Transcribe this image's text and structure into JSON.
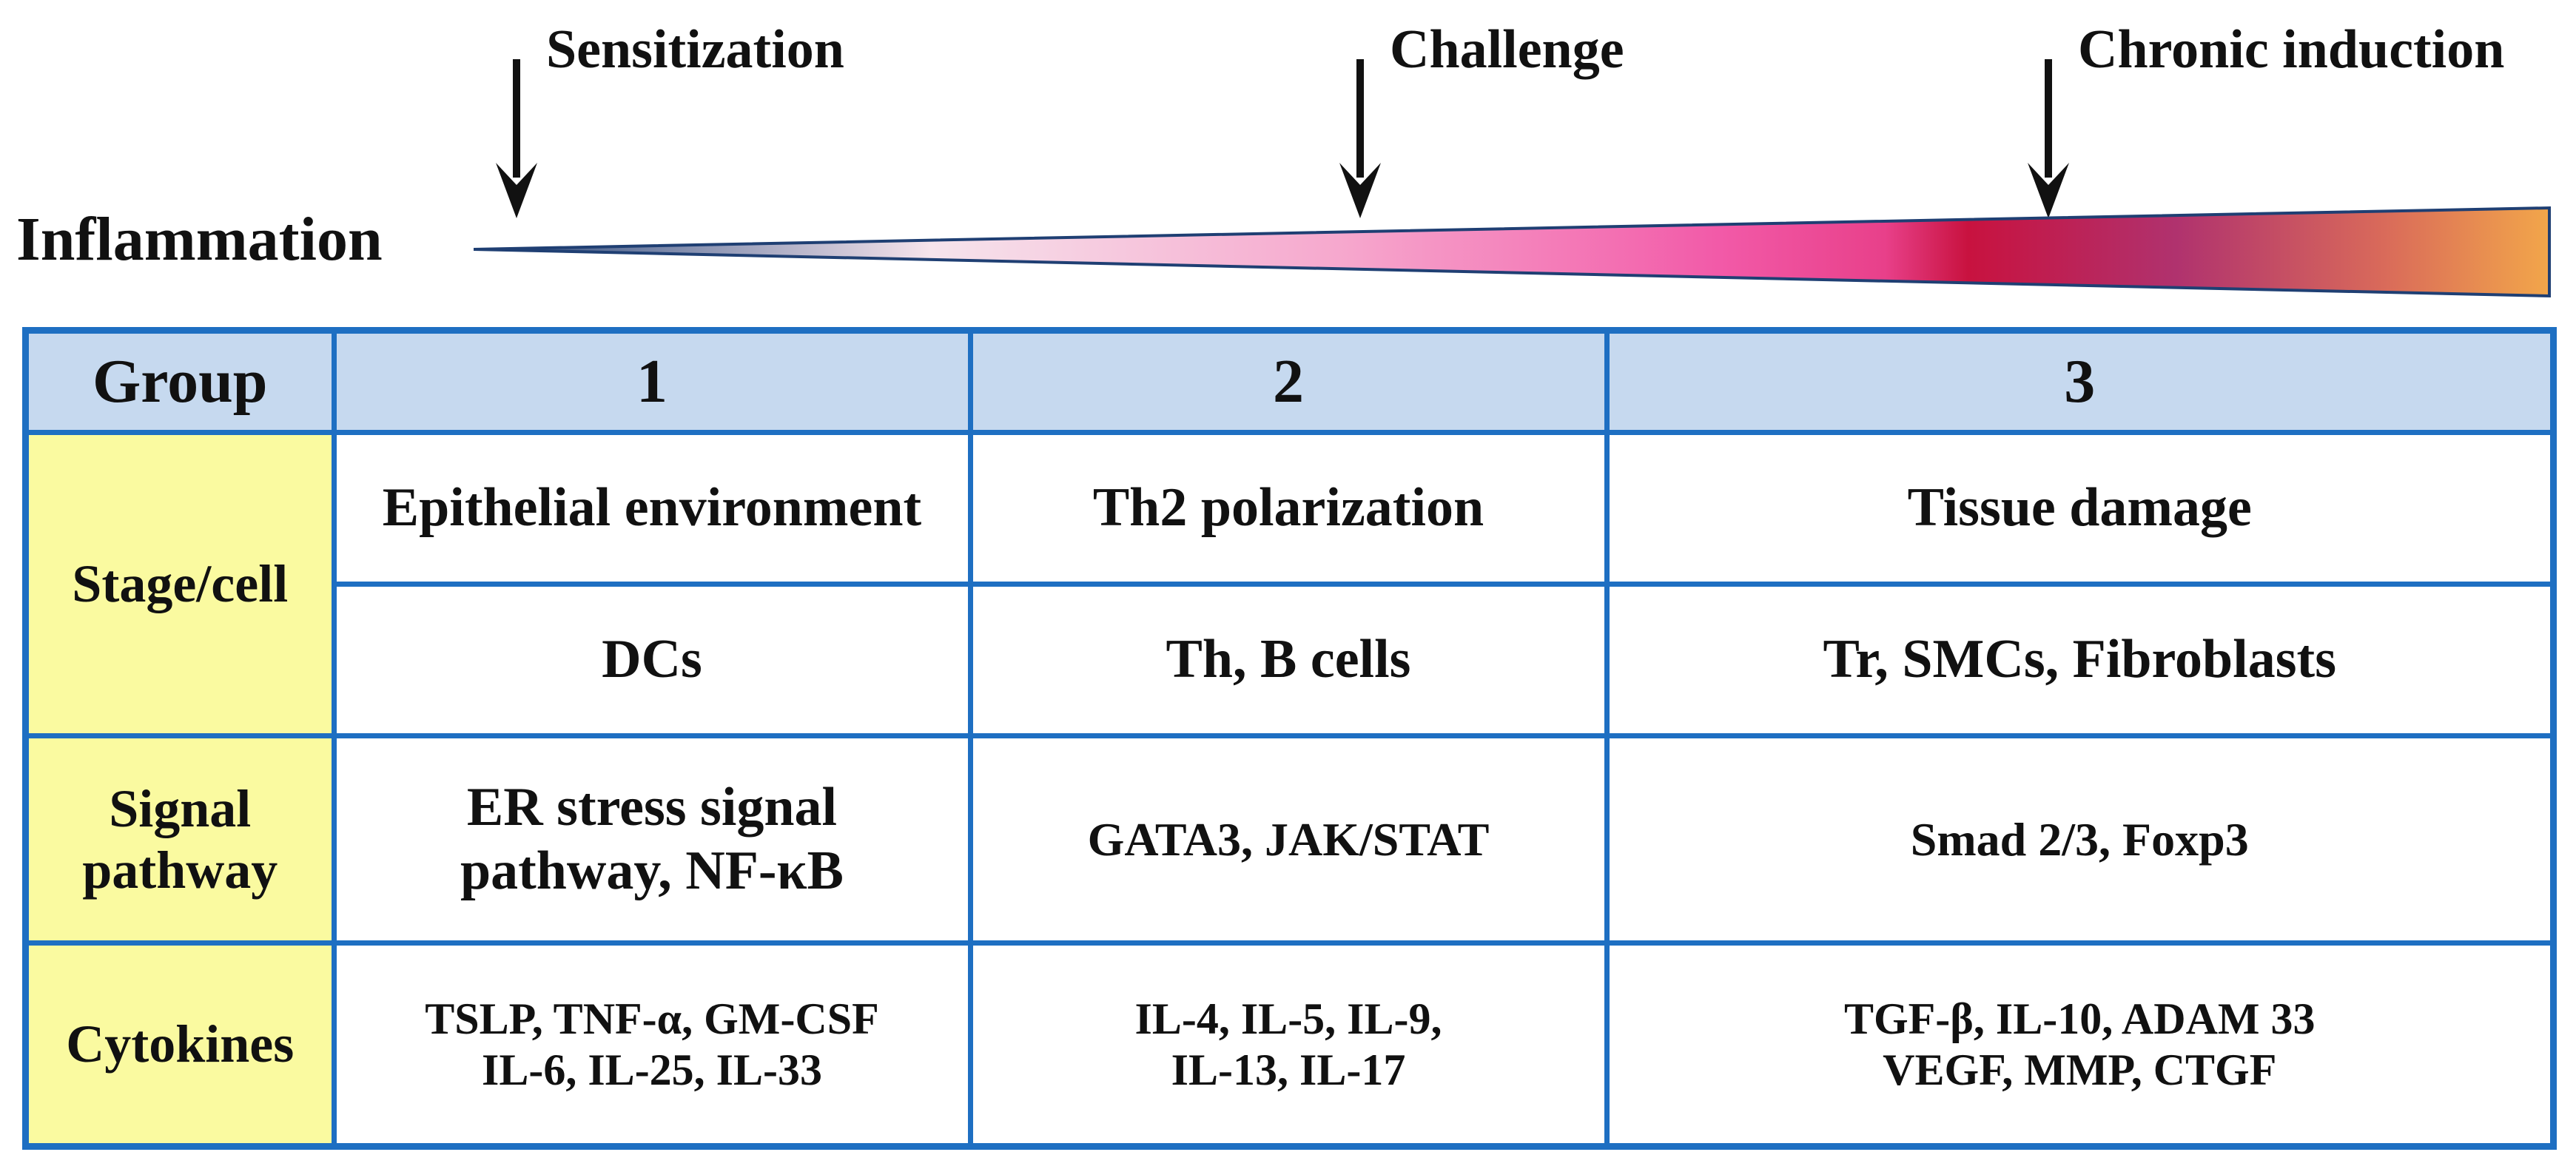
{
  "stages": {
    "sensitization": "Sensitization",
    "challenge": "Challenge",
    "chronic": "Chronic induction"
  },
  "inflammation_label": "Inflammation",
  "colors": {
    "table_border": "#1e6fc2",
    "header_fill": "#c6d9ef",
    "rowhead_fill": "#fafaa0",
    "wedge_start": "#1f3f73",
    "wedge_pink": "#f25aa8",
    "wedge_crimson": "#c8123f",
    "wedge_end": "#f2a64a"
  },
  "table": {
    "group_label": "Group",
    "groups": [
      "1",
      "2",
      "3"
    ],
    "stage_cell_label": "Stage/cell",
    "stage": [
      "Epithelial environment",
      "Th2 polarization",
      "Tissue damage"
    ],
    "cells": [
      "DCs",
      "Th, B cells",
      "Tr, SMCs, Fibroblasts"
    ],
    "signal_label_1": "Signal",
    "signal_label_2": "pathway",
    "signal": {
      "g1_line1": "ER stress signal",
      "g1_line2": "pathway, NF-κB",
      "g2": "GATA3, JAK/STAT",
      "g3": "Smad 2/3, Foxp3"
    },
    "cytokines_label": "Cytokines",
    "cytokines": {
      "g1_line1": "TSLP, TNF-α, GM-CSF",
      "g1_line2": "IL-6, IL-25, IL-33",
      "g2_line1": "IL-4, IL-5, IL-9,",
      "g2_line2": "IL-13, IL-17",
      "g3_line1": "TGF-β, IL-10, ADAM 33",
      "g3_line2": "VEGF, MMP, CTGF"
    }
  }
}
